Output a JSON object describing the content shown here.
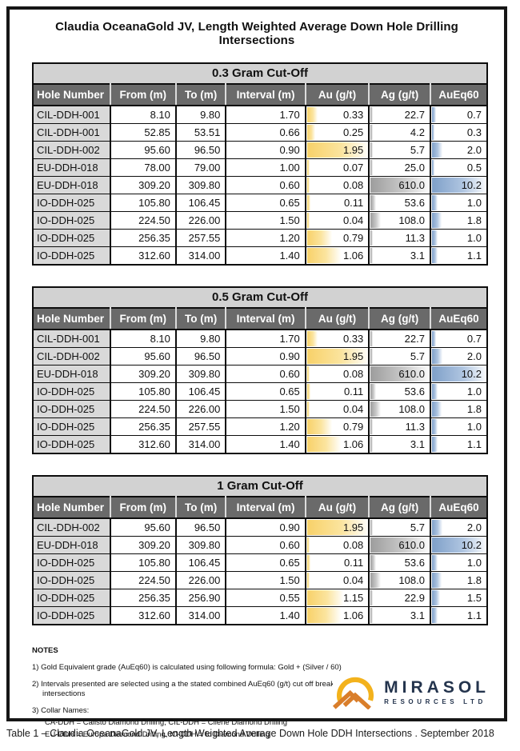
{
  "title": "Claudia OceanaGold JV, Length Weighted Average Down Hole Drilling Intersections",
  "columns": [
    "Hole Number",
    "From (m)",
    "To (m)",
    "Interval (m)",
    "Au (g/t)",
    "Ag (g/t)",
    "AuEq60"
  ],
  "bar_colors": {
    "au": "#f8d169",
    "ag": "#9d9d9d",
    "aueq": "#7fa0c9"
  },
  "header_colors": {
    "header_bg": "#6a6a6a",
    "header_text": "#ffffff",
    "cutoff_band_bg": "#d2d2d2",
    "hole_cell_bg": "#d9d9d9"
  },
  "tables": [
    {
      "cutoff": "0.3 Gram Cut-Off",
      "rows": [
        {
          "hole": "CIL-DDH-001",
          "from": "8.10",
          "to": "9.80",
          "interval": "1.70",
          "au": "0.33",
          "ag": "22.7",
          "aueq": "0.7"
        },
        {
          "hole": "CIL-DDH-001",
          "from": "52.85",
          "to": "53.51",
          "interval": "0.66",
          "au": "0.25",
          "ag": "4.2",
          "aueq": "0.3"
        },
        {
          "hole": "CIL-DDH-002",
          "from": "95.60",
          "to": "96.50",
          "interval": "0.90",
          "au": "1.95",
          "ag": "5.7",
          "aueq": "2.0"
        },
        {
          "hole": "EU-DDH-018",
          "from": "78.00",
          "to": "79.00",
          "interval": "1.00",
          "au": "0.07",
          "ag": "25.0",
          "aueq": "0.5"
        },
        {
          "hole": "EU-DDH-018",
          "from": "309.20",
          "to": "309.80",
          "interval": "0.60",
          "au": "0.08",
          "ag": "610.0",
          "aueq": "10.2"
        },
        {
          "hole": "IO-DDH-025",
          "from": "105.80",
          "to": "106.45",
          "interval": "0.65",
          "au": "0.11",
          "ag": "53.6",
          "aueq": "1.0"
        },
        {
          "hole": "IO-DDH-025",
          "from": "224.50",
          "to": "226.00",
          "interval": "1.50",
          "au": "0.04",
          "ag": "108.0",
          "aueq": "1.8"
        },
        {
          "hole": "IO-DDH-025",
          "from": "256.35",
          "to": "257.55",
          "interval": "1.20",
          "au": "0.79",
          "ag": "11.3",
          "aueq": "1.0"
        },
        {
          "hole": "IO-DDH-025",
          "from": "312.60",
          "to": "314.00",
          "interval": "1.40",
          "au": "1.06",
          "ag": "3.1",
          "aueq": "1.1"
        }
      ]
    },
    {
      "cutoff": "0.5 Gram Cut-Off",
      "rows": [
        {
          "hole": "CIL-DDH-001",
          "from": "8.10",
          "to": "9.80",
          "interval": "1.70",
          "au": "0.33",
          "ag": "22.7",
          "aueq": "0.7"
        },
        {
          "hole": "CIL-DDH-002",
          "from": "95.60",
          "to": "96.50",
          "interval": "0.90",
          "au": "1.95",
          "ag": "5.7",
          "aueq": "2.0"
        },
        {
          "hole": "EU-DDH-018",
          "from": "309.20",
          "to": "309.80",
          "interval": "0.60",
          "au": "0.08",
          "ag": "610.0",
          "aueq": "10.2"
        },
        {
          "hole": "IO-DDH-025",
          "from": "105.80",
          "to": "106.45",
          "interval": "0.65",
          "au": "0.11",
          "ag": "53.6",
          "aueq": "1.0"
        },
        {
          "hole": "IO-DDH-025",
          "from": "224.50",
          "to": "226.00",
          "interval": "1.50",
          "au": "0.04",
          "ag": "108.0",
          "aueq": "1.8"
        },
        {
          "hole": "IO-DDH-025",
          "from": "256.35",
          "to": "257.55",
          "interval": "1.20",
          "au": "0.79",
          "ag": "11.3",
          "aueq": "1.0"
        },
        {
          "hole": "IO-DDH-025",
          "from": "312.60",
          "to": "314.00",
          "interval": "1.40",
          "au": "1.06",
          "ag": "3.1",
          "aueq": "1.1"
        }
      ]
    },
    {
      "cutoff": "1 Gram Cut-Off",
      "rows": [
        {
          "hole": "CIL-DDH-002",
          "from": "95.60",
          "to": "96.50",
          "interval": "0.90",
          "au": "1.95",
          "ag": "5.7",
          "aueq": "2.0"
        },
        {
          "hole": "EU-DDH-018",
          "from": "309.20",
          "to": "309.80",
          "interval": "0.60",
          "au": "0.08",
          "ag": "610.0",
          "aueq": "10.2"
        },
        {
          "hole": "IO-DDH-025",
          "from": "105.80",
          "to": "106.45",
          "interval": "0.65",
          "au": "0.11",
          "ag": "53.6",
          "aueq": "1.0"
        },
        {
          "hole": "IO-DDH-025",
          "from": "224.50",
          "to": "226.00",
          "interval": "1.50",
          "au": "0.04",
          "ag": "108.0",
          "aueq": "1.8"
        },
        {
          "hole": "IO-DDH-025",
          "from": "256.35",
          "to": "256.90",
          "interval": "0.55",
          "au": "1.15",
          "ag": "22.9",
          "aueq": "1.5"
        },
        {
          "hole": "IO-DDH-025",
          "from": "312.60",
          "to": "314.00",
          "interval": "1.40",
          "au": "1.06",
          "ag": "3.1",
          "aueq": "1.1"
        }
      ]
    }
  ],
  "notes": {
    "heading": "NOTES",
    "items": [
      "1) Gold Equivalent grade (AuEq60) is calculated using following formula: Gold + (Silver / 60)",
      "2) Intervals presented are selected using a the stated combined AuEq60 (g/t) cut off breaks to calculate length weighted average intersections",
      "3) Collar Names:"
    ],
    "collar_lines": [
      "CA-DDH = Calisto Diamond Drilling, CIL-DDH = Cilene Diamond Drilling",
      "EU-DDH = Europa Diamond Drilling, IO-DDH = Io Diamond Drilling"
    ]
  },
  "logo": {
    "name": "MIRASOL",
    "subtitle": "RESOURCES LTD",
    "sun_color": "#f3b21c",
    "mountain_color": "#d97e2b"
  },
  "caption": "Table 1 – Claudia OceanaGold JV, Length Weighted Average Down Hole DDH Intersections . September 2018"
}
